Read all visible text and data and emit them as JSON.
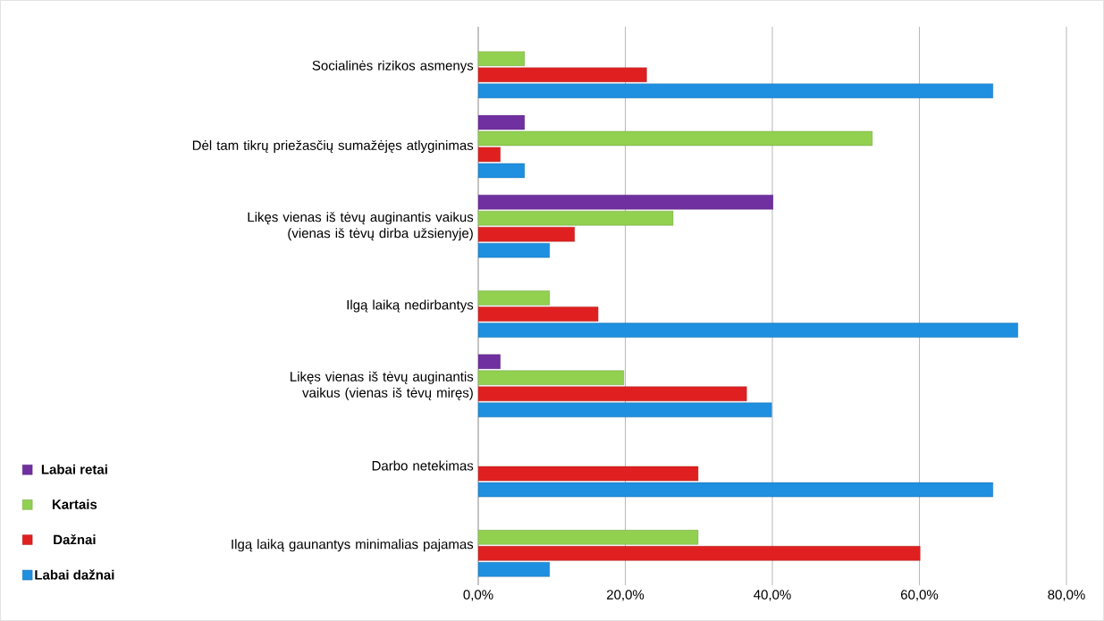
{
  "chart_data": {
    "type": "bar",
    "orientation": "horizontal",
    "categories": [
      "Socialinės rizikos asmenys",
      "Dėl tam tikrų priežasčių sumažėjęs atlyginimas",
      "Likęs vienas iš tėvų auginantis vaikus (vienas iš tėvų dirba užsienyje)",
      "Ilgą laiką nedirbantys",
      "Likęs vienas iš tėvų auginantis vaikus (vienas iš tėvų miręs)",
      "Darbo netekimas",
      "Ilgą laiką gaunantys minimalias pajamas"
    ],
    "series": [
      {
        "name": "Labai retai",
        "color": "#7030a0",
        "values": [
          null,
          6.3,
          40.1,
          null,
          3.0,
          null,
          null
        ]
      },
      {
        "name": "Kartais",
        "color": "#92d050",
        "values": [
          6.3,
          53.6,
          26.5,
          9.7,
          19.8,
          null,
          29.9
        ]
      },
      {
        "name": "Dažnai",
        "color": "#e02020",
        "values": [
          22.9,
          3.0,
          13.1,
          16.3,
          36.5,
          29.9,
          60.1
        ]
      },
      {
        "name": "Labai dažnai",
        "color": "#1f8fe0",
        "values": [
          70.0,
          6.3,
          9.7,
          73.4,
          39.9,
          70.0,
          9.7
        ]
      }
    ],
    "xlim": [
      0,
      80
    ],
    "xticks": [
      {
        "value": 0,
        "label": "0,0%"
      },
      {
        "value": 20,
        "label": "20,0%"
      },
      {
        "value": 40,
        "label": "40,0%"
      },
      {
        "value": 60,
        "label": "60,0%"
      },
      {
        "value": 80,
        "label": "80,0%"
      }
    ],
    "grid": "x",
    "legend": "left"
  }
}
